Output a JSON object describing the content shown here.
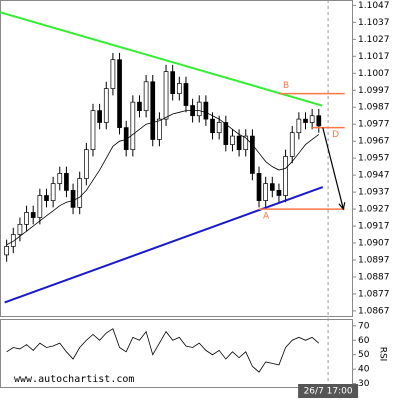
{
  "chart_data": [
    {
      "type": "candlestick",
      "x": [
        0,
        1,
        2,
        3,
        4,
        5,
        6,
        7,
        8,
        9,
        10,
        11,
        12,
        13,
        14,
        15,
        16,
        17,
        18,
        19,
        20,
        21,
        22,
        23,
        24,
        25,
        26,
        27,
        28,
        29,
        30,
        31,
        32,
        33,
        34,
        35,
        36,
        37,
        38,
        39,
        40,
        41,
        42,
        43,
        44,
        45,
        46,
        47
      ],
      "open": [
        1.09,
        1.0905,
        1.0912,
        1.0918,
        1.0925,
        1.0922,
        1.0935,
        1.0932,
        1.0942,
        1.0948,
        1.0938,
        1.0928,
        1.0945,
        1.0962,
        1.0985,
        1.0978,
        1.0998,
        1.1015,
        1.0975,
        1.0962,
        1.099,
        1.0985,
        1.1002,
        1.0968,
        1.098,
        1.1008,
        1.0995,
        1.1001,
        1.0988,
        1.0982,
        1.099,
        1.098,
        1.0972,
        1.0978,
        1.0965,
        1.097,
        1.0962,
        1.097,
        1.0948,
        1.0932,
        1.0942,
        1.0938,
        1.0935,
        1.0958,
        1.0972,
        1.098,
        1.0978,
        1.0982
      ],
      "high": [
        1.0909,
        1.0916,
        1.0922,
        1.0929,
        1.0929,
        1.0939,
        1.0939,
        1.0946,
        1.0952,
        1.0952,
        1.0942,
        1.0949,
        1.0966,
        1.0989,
        1.0989,
        1.1002,
        1.1019,
        1.1019,
        1.0979,
        1.0994,
        1.0994,
        1.1006,
        1.1006,
        1.0984,
        1.1012,
        1.1012,
        1.1005,
        1.1005,
        1.0992,
        1.0994,
        1.0994,
        1.0984,
        1.0982,
        1.0982,
        1.0974,
        1.0974,
        1.0974,
        1.0974,
        1.0952,
        1.0946,
        1.0946,
        1.0942,
        1.0962,
        1.0976,
        1.0984,
        1.0984,
        1.0986,
        1.0986
      ],
      "low": [
        1.0896,
        1.0901,
        1.0908,
        1.0914,
        1.0918,
        1.0918,
        1.0928,
        1.0928,
        1.0938,
        1.0934,
        1.0924,
        1.0924,
        1.0941,
        1.0958,
        1.0974,
        1.0974,
        1.0994,
        1.0971,
        1.0958,
        1.0958,
        1.0981,
        1.0981,
        1.0964,
        1.0964,
        1.0976,
        1.0991,
        1.0991,
        1.0984,
        1.0978,
        1.0978,
        1.0976,
        1.0968,
        1.0968,
        1.0961,
        1.0961,
        1.0958,
        1.0958,
        1.0944,
        1.0928,
        1.0928,
        1.0934,
        1.0931,
        1.0931,
        1.0954,
        1.0968,
        1.0974,
        1.0974,
        1.0972
      ],
      "close": [
        1.0905,
        1.0912,
        1.0918,
        1.0925,
        1.0922,
        1.0935,
        1.0932,
        1.0942,
        1.0948,
        1.0938,
        1.0928,
        1.0945,
        1.0962,
        1.0985,
        1.0978,
        1.0998,
        1.1015,
        1.0975,
        1.0962,
        1.099,
        1.0985,
        1.1002,
        1.0968,
        1.098,
        1.1008,
        1.0995,
        1.1001,
        1.0988,
        1.0982,
        1.099,
        1.098,
        1.0972,
        1.0978,
        1.0965,
        1.097,
        1.0962,
        1.097,
        1.0948,
        1.0932,
        1.0942,
        1.0938,
        1.0935,
        1.0958,
        1.0972,
        1.098,
        1.0978,
        1.0982,
        1.0976
      ],
      "moving_average": {
        "color": "#000000",
        "values": [
          1.0906,
          1.0908,
          1.0911,
          1.0914,
          1.0917,
          1.092,
          1.0923,
          1.0926,
          1.0929,
          1.0931,
          1.0932,
          1.0934,
          1.0938,
          1.0944,
          1.095,
          1.0957,
          1.0964,
          1.0967,
          1.0968,
          1.0971,
          1.0974,
          1.0977,
          1.0978,
          1.0979,
          1.0981,
          1.0983,
          1.0984,
          1.0985,
          1.0985,
          1.0985,
          1.0984,
          1.0982,
          1.098,
          1.0977,
          1.0974,
          1.0971,
          1.0969,
          1.0965,
          1.096,
          1.0955,
          1.0952,
          1.095,
          1.0951,
          1.0955,
          1.096,
          1.0965,
          1.0968,
          1.0971
        ]
      },
      "xlim": [
        -1,
        52
      ],
      "ylim": [
        1.0864,
        1.1049
      ],
      "yticks": [
        1.1047,
        1.1037,
        1.1027,
        1.1017,
        1.1007,
        1.0997,
        1.0987,
        1.0977,
        1.0967,
        1.0957,
        1.0947,
        1.0937,
        1.0927,
        1.0917,
        1.0907,
        1.0897,
        1.0887,
        1.0877,
        1.0867
      ],
      "xticks": [
        {
          "value": 48.4,
          "label": "26/7 17:00"
        }
      ],
      "trend_lines": [
        {
          "color": "#33ee33",
          "x": [
            -1,
            47.5
          ],
          "y": [
            1.1043,
            1.0988
          ]
        },
        {
          "color": "#1a1acc",
          "x": [
            -0.3,
            47.6
          ],
          "y": [
            1.0872,
            1.094
          ]
        }
      ],
      "levels": [
        {
          "label": "B",
          "color": "#ff7744",
          "x": [
            41,
            50.9
          ],
          "value": 1.0995
        },
        {
          "label": "A",
          "color": "#ff7744",
          "x": [
            38,
            50.9
          ],
          "value": 1.0927
        },
        {
          "label": "D",
          "color": "#ff7744",
          "x": [
            46,
            50.9
          ],
          "value": 1.0975
        }
      ],
      "arrow": {
        "color": "#000000",
        "x": [
          47.6,
          50.7
        ],
        "y": [
          1.0975,
          1.0927
        ]
      },
      "watermark": "www.autochartist.com"
    },
    {
      "type": "line",
      "title": "RSI",
      "x": [
        0,
        1,
        2,
        3,
        4,
        5,
        6,
        7,
        8,
        9,
        10,
        11,
        12,
        13,
        14,
        15,
        16,
        17,
        18,
        19,
        20,
        21,
        22,
        23,
        24,
        25,
        26,
        27,
        28,
        29,
        30,
        31,
        32,
        33,
        34,
        35,
        36,
        37,
        38,
        39,
        40,
        41,
        42,
        43,
        44,
        45,
        46,
        47
      ],
      "series": [
        {
          "color": "#000000",
          "values": [
            52,
            55,
            54,
            57,
            53,
            58,
            55,
            56,
            58,
            52,
            47,
            55,
            60,
            64,
            60,
            65,
            68,
            55,
            52,
            62,
            60,
            66,
            50,
            58,
            66,
            60,
            62,
            56,
            55,
            58,
            53,
            50,
            53,
            47,
            52,
            48,
            52,
            42,
            38,
            45,
            44,
            43,
            55,
            60,
            62,
            60,
            62,
            58
          ]
        }
      ],
      "xlim": [
        -1,
        52
      ],
      "ylim": [
        27,
        74
      ],
      "yticks": [
        70,
        60,
        50,
        40,
        30
      ]
    }
  ]
}
